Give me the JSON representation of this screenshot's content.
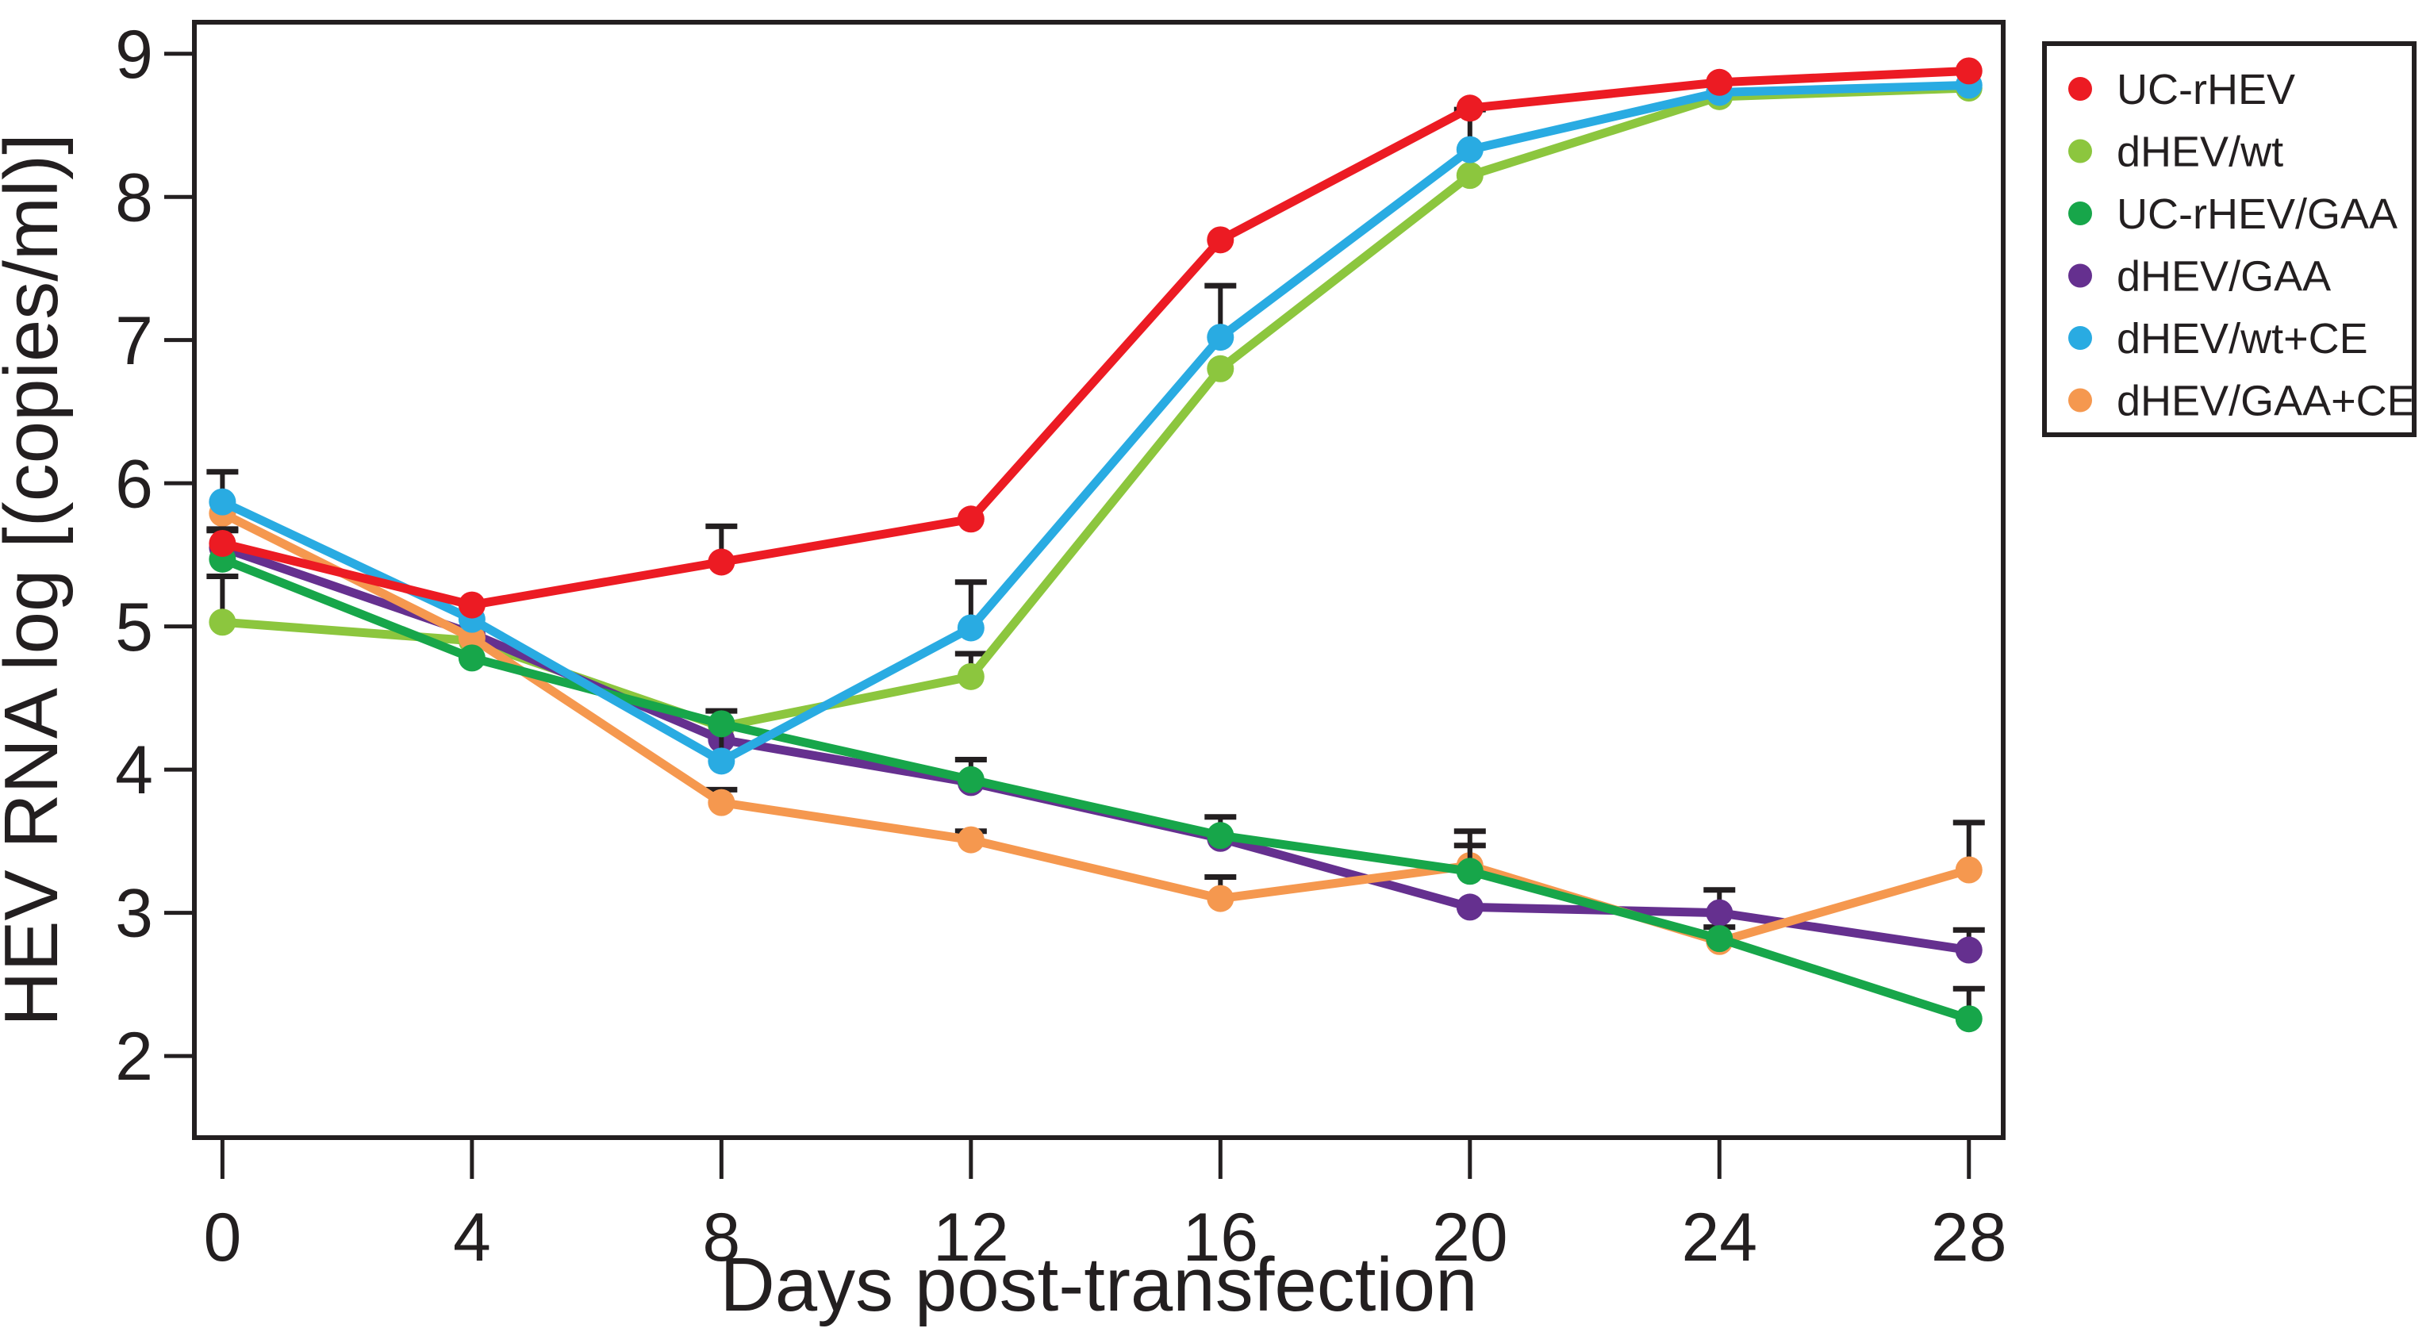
{
  "figure": {
    "background": "#ffffff",
    "axis_color": "#231f20"
  },
  "chart_data": {
    "type": "line",
    "title": "",
    "xlabel": "Days post-transfection",
    "ylabel": "HEV RNA log [(copies/ml)]",
    "x": [
      0,
      4,
      8,
      12,
      16,
      20,
      24,
      28
    ],
    "x_ticks": [
      "0",
      "4",
      "8",
      "12",
      "16",
      "20",
      "24",
      "28"
    ],
    "y_ticks": [
      "2",
      "3",
      "4",
      "5",
      "6",
      "7",
      "8",
      "9"
    ],
    "xlim": [
      -0.45,
      28.55
    ],
    "ylim": [
      1.43,
      9.22
    ],
    "grid": false,
    "legend_position": "outside-right-top",
    "marker": "circle",
    "draw_order": [
      1,
      3,
      5,
      2,
      4,
      0
    ],
    "series": [
      {
        "name": "UC-rHEV",
        "color": "#EC1B23",
        "values": [
          5.58,
          5.15,
          5.45,
          5.75,
          7.7,
          8.62,
          8.8,
          8.88
        ],
        "err_up": [
          0.1,
          0,
          0.25,
          0,
          0,
          0,
          0,
          0
        ],
        "err_down": [
          0,
          0,
          0,
          0,
          0,
          0,
          0,
          0
        ]
      },
      {
        "name": "dHEV/wt",
        "color": "#8CC63E",
        "values": [
          5.03,
          4.9,
          4.3,
          4.65,
          6.8,
          8.15,
          8.7,
          8.76
        ],
        "err_up": [
          0.32,
          0,
          0,
          0.16,
          0,
          0,
          0,
          0
        ],
        "err_down": [
          0,
          0,
          0,
          0,
          0,
          0,
          0,
          0
        ]
      },
      {
        "name": "UC-rHEV/GAA",
        "color": "#17A64A",
        "values": [
          5.47,
          4.78,
          4.32,
          3.93,
          3.54,
          3.29,
          2.82,
          2.26
        ],
        "err_up": [
          0,
          0,
          0.09,
          0.14,
          0.13,
          0.28,
          0,
          0.21
        ],
        "err_down": [
          0,
          0,
          0.21,
          0,
          0,
          0,
          0,
          0
        ]
      },
      {
        "name": "dHEV/GAA",
        "color": "#65308F",
        "values": [
          5.55,
          4.95,
          4.21,
          3.91,
          3.52,
          3.04,
          3.0,
          2.74
        ],
        "err_up": [
          0,
          0,
          0,
          0,
          0,
          0,
          0.16,
          0.14
        ],
        "err_down": [
          0,
          0,
          0,
          0,
          0,
          0,
          0.1,
          0
        ]
      },
      {
        "name": "dHEV/wt+CE",
        "color": "#29ABE2",
        "values": [
          5.87,
          5.05,
          4.06,
          4.99,
          7.02,
          8.33,
          8.73,
          8.78
        ],
        "err_up": [
          0.21,
          0,
          0,
          0.32,
          0.36,
          0.28,
          0,
          0
        ],
        "err_down": [
          0,
          0,
          0,
          0,
          0,
          0,
          0,
          0
        ]
      },
      {
        "name": "dHEV/GAA+CE",
        "color": "#F5984F",
        "values": [
          5.79,
          4.92,
          3.77,
          3.51,
          3.1,
          3.33,
          2.8,
          3.3
        ],
        "err_up": [
          0,
          0,
          0.09,
          0.06,
          0.15,
          0.14,
          0,
          0.33
        ],
        "err_down": [
          0.12,
          0,
          0,
          0,
          0,
          0,
          0,
          0
        ]
      }
    ]
  }
}
